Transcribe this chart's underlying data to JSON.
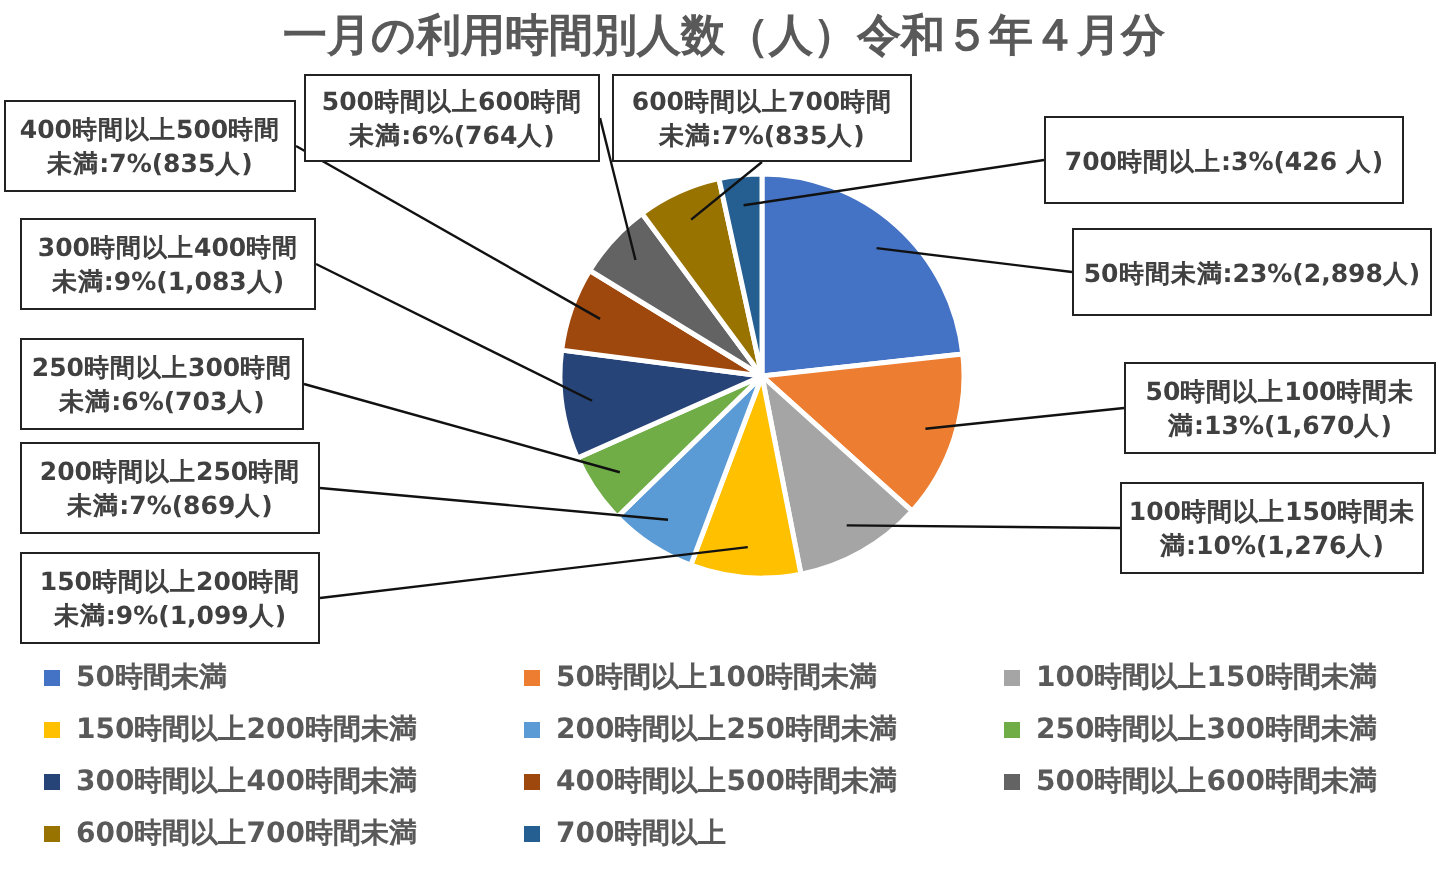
{
  "chart_data": {
    "type": "pie",
    "title": "一月の利用時間別人数（人）令和５年４月分",
    "categories": [
      "50時間未満",
      "50時間以上100時間未満",
      "100時間以上150時間未満",
      "150時間以上200時間未満",
      "200時間以上250時間未満",
      "250時間以上300時間未満",
      "300時間以上400時間未満",
      "400時間以上500時間未満",
      "500時間以上600時間未満",
      "600時間以上700時間未満",
      "700時間以上"
    ],
    "values": [
      2898,
      1670,
      1276,
      1099,
      869,
      703,
      1083,
      835,
      764,
      835,
      426
    ],
    "colors": [
      "#4472c4",
      "#ed7d31",
      "#a5a5a5",
      "#ffc000",
      "#5b9bd5",
      "#70ad47",
      "#264478",
      "#9e480e",
      "#636363",
      "#997300",
      "#255e91"
    ],
    "value_labels": [
      "50時間未満:23%(2,898人)",
      "50時間以上100時間未満:13%(1,670人)",
      "100時間以上150時間未満:10%(1,276人)",
      "150時間以上200時間未満:9%(1,099人)",
      "200時間以上250時間未満:7%(869人)",
      "250時間以上300時間未満:6%(703人)",
      "300時間以上400時間未満:9%(1,083人)",
      "400時間以上500時間未満:7%(835人)",
      "500時間以上600時間未満:6%(764人)",
      "600時間以上700時間未満:7%(835人)",
      "700時間以上:3%(426 人)"
    ],
    "legend": "bottom"
  }
}
